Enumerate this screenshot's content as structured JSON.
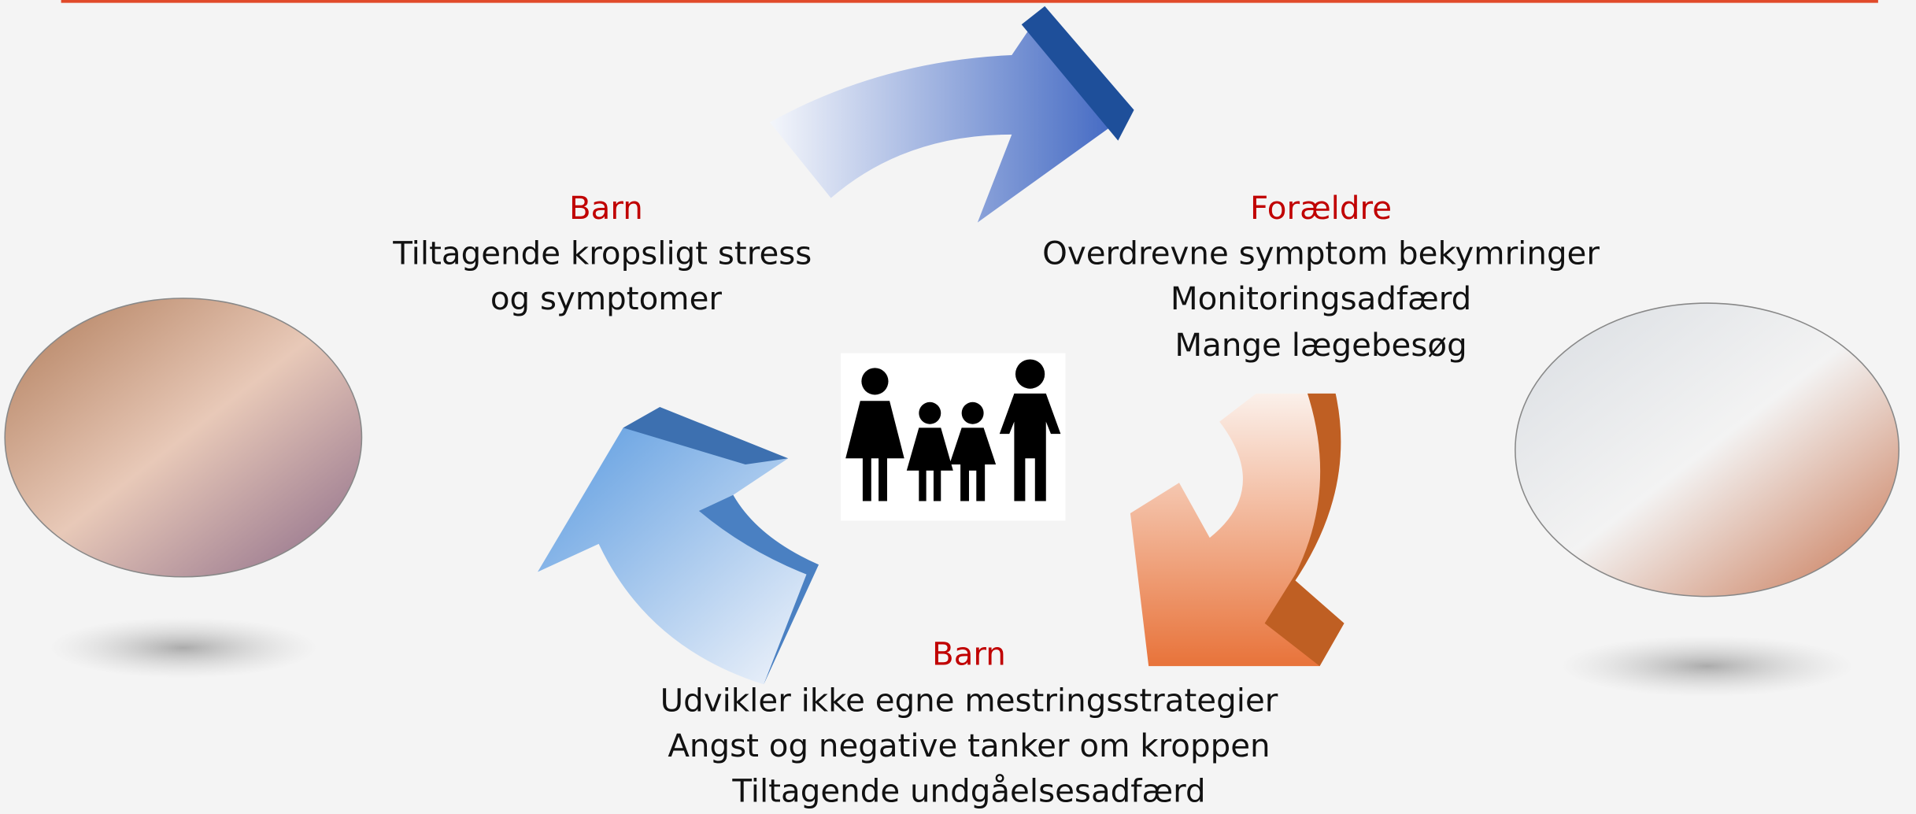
{
  "nodes": [
    {
      "heading": "Barn",
      "lines": [
        "Tiltagende kropsligt stress",
        "og symptomer"
      ]
    },
    {
      "heading": "Forældre",
      "lines": [
        "Overdrevne symptom bekymringer",
        "Monitoringsadfærd",
        "Mange lægebesøg"
      ]
    },
    {
      "heading": "Barn",
      "lines": [
        "Udvikler ikke egne mestringsstrategier",
        "Angst og negative tanker om kroppen",
        "Tiltagende undgåelsesadfærd"
      ]
    }
  ]
}
